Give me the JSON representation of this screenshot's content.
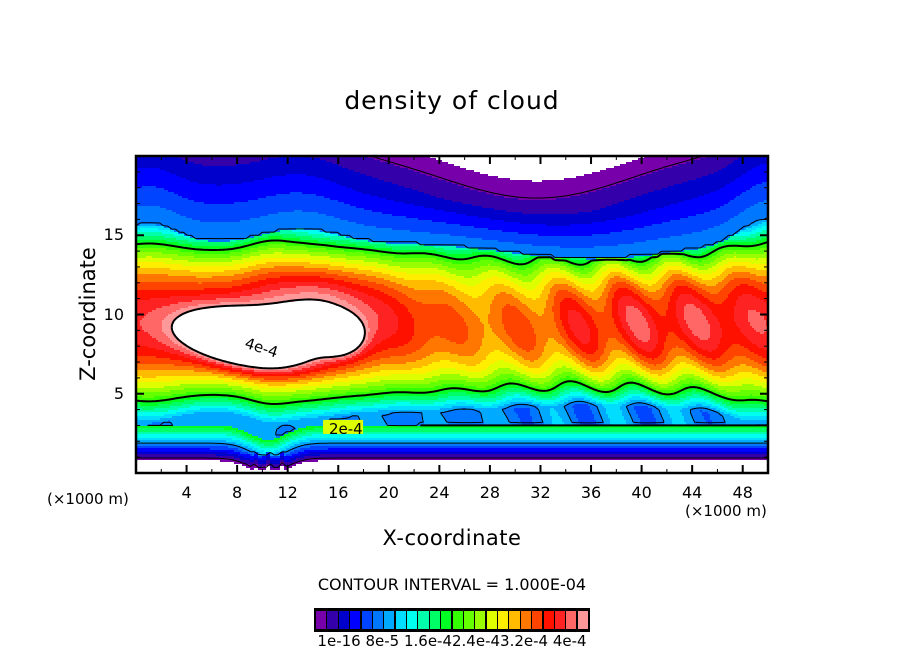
{
  "chart_data": {
    "type": "heatmap",
    "subtype": "filled-contour",
    "title": "density of cloud",
    "xlabel": "X-coordinate",
    "ylabel": "Z-coordinate",
    "x_unit_label": "(×1000 m)",
    "y_unit_label": "(×1000 m)",
    "xlim": [
      0,
      50
    ],
    "ylim": [
      0,
      20
    ],
    "x_ticks": [
      4,
      8,
      12,
      16,
      20,
      24,
      28,
      32,
      36,
      40,
      44,
      48
    ],
    "x_minor_step": 2,
    "y_ticks": [
      5,
      10,
      15
    ],
    "y_minor_step": 1,
    "contour_interval_text": "CONTOUR INTERVAL = 1.000E-04",
    "contour_interval": 0.0001,
    "levels": [
      1e-16,
      2e-05,
      4e-05,
      6e-05,
      8e-05,
      0.0001,
      0.00012,
      0.00014,
      0.00016,
      0.00018,
      0.0002,
      0.00022,
      0.00024,
      0.00026,
      0.00028,
      0.0003,
      0.00032,
      0.00034,
      0.00036,
      0.00038,
      0.0004
    ],
    "colorbar_colors": [
      "#7700aa",
      "#3300aa",
      "#0000cc",
      "#0000ff",
      "#0044ff",
      "#0077ff",
      "#00aaff",
      "#00ddff",
      "#00ffee",
      "#00ffaa",
      "#00ff66",
      "#00ff22",
      "#33ff00",
      "#66ff00",
      "#99ff00",
      "#ddff00",
      "#ffee00",
      "#ffbb00",
      "#ff7700",
      "#ff4400",
      "#ff1100",
      "#ff2222",
      "#ff6666",
      "#ff9999"
    ],
    "colorbar_labels": [
      "1e-16",
      "8e-5",
      "1.6e-4",
      "2.4e-4",
      "3.2e-4",
      "4e-4"
    ],
    "colorbar_label_text": "1e-16 8e-5 1.6e-42.4e-43.2e-4 4e-4",
    "contour_line_labels": [
      "4e-4",
      "2e-4"
    ],
    "features": [
      {
        "name": "max-core",
        "x": [
          4,
          13
        ],
        "z": [
          6.5,
          10.5
        ],
        "value": ">4e-4"
      },
      {
        "name": "secondary-core",
        "x": [
          15,
          17
        ],
        "z": [
          8,
          9.3
        ],
        "value": ">4e-4"
      },
      {
        "name": "2e-4 contour",
        "z_approx": 2.9
      },
      {
        "name": "upper 1e-4 contour",
        "z_approx": 14.5
      },
      {
        "name": "lower 1e-4 contour",
        "z_approx": 5
      }
    ],
    "grid": false,
    "legend_placement": "bottom"
  }
}
